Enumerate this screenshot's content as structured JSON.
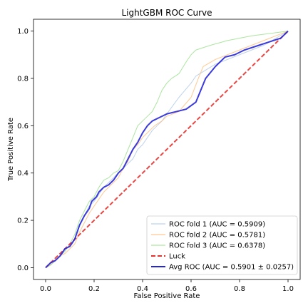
{
  "chart_data": {
    "type": "line",
    "title": "LightGBM ROC Curve",
    "xlabel": "False Positive Rate",
    "ylabel": "True Positive Rate",
    "xlim": [
      -0.05,
      1.05
    ],
    "ylim": [
      -0.05,
      1.05
    ],
    "xticks": [
      "0.0",
      "0.2",
      "0.4",
      "0.6",
      "0.8",
      "1.0"
    ],
    "yticks": [
      "0.0",
      "0.2",
      "0.4",
      "0.6",
      "0.8",
      "1.0"
    ],
    "legend_position": "lower-right",
    "grid": false,
    "series": [
      {
        "name": "ROC fold 1 (AUC = 0.5909)",
        "color": "#aec7e8",
        "style": "solid",
        "points": [
          [
            0,
            0
          ],
          [
            0.02,
            0.02
          ],
          [
            0.05,
            0.04
          ],
          [
            0.08,
            0.07
          ],
          [
            0.1,
            0.1
          ],
          [
            0.12,
            0.12
          ],
          [
            0.14,
            0.18
          ],
          [
            0.16,
            0.22
          ],
          [
            0.18,
            0.26
          ],
          [
            0.2,
            0.28
          ],
          [
            0.22,
            0.31
          ],
          [
            0.24,
            0.34
          ],
          [
            0.26,
            0.36
          ],
          [
            0.28,
            0.38
          ],
          [
            0.3,
            0.4
          ],
          [
            0.32,
            0.42
          ],
          [
            0.34,
            0.44
          ],
          [
            0.36,
            0.46
          ],
          [
            0.38,
            0.5
          ],
          [
            0.4,
            0.52
          ],
          [
            0.42,
            0.55
          ],
          [
            0.44,
            0.58
          ],
          [
            0.46,
            0.6
          ],
          [
            0.48,
            0.62
          ],
          [
            0.5,
            0.65
          ],
          [
            0.55,
            0.72
          ],
          [
            0.6,
            0.78
          ],
          [
            0.62,
            0.81
          ],
          [
            0.7,
            0.86
          ],
          [
            0.8,
            0.9
          ],
          [
            0.9,
            0.94
          ],
          [
            1,
            1
          ]
        ]
      },
      {
        "name": "ROC fold 2 (AUC = 0.5781)",
        "color": "#ffbb78",
        "style": "solid",
        "points": [
          [
            0,
            0
          ],
          [
            0.03,
            0.02
          ],
          [
            0.06,
            0.05
          ],
          [
            0.08,
            0.06
          ],
          [
            0.1,
            0.08
          ],
          [
            0.12,
            0.1
          ],
          [
            0.14,
            0.15
          ],
          [
            0.16,
            0.19
          ],
          [
            0.18,
            0.23
          ],
          [
            0.2,
            0.26
          ],
          [
            0.22,
            0.29
          ],
          [
            0.24,
            0.32
          ],
          [
            0.26,
            0.34
          ],
          [
            0.28,
            0.36
          ],
          [
            0.3,
            0.38
          ],
          [
            0.32,
            0.42
          ],
          [
            0.34,
            0.45
          ],
          [
            0.36,
            0.5
          ],
          [
            0.38,
            0.52
          ],
          [
            0.4,
            0.55
          ],
          [
            0.42,
            0.57
          ],
          [
            0.45,
            0.6
          ],
          [
            0.48,
            0.62
          ],
          [
            0.5,
            0.64
          ],
          [
            0.55,
            0.66
          ],
          [
            0.6,
            0.72
          ],
          [
            0.63,
            0.8
          ],
          [
            0.65,
            0.85
          ],
          [
            0.7,
            0.88
          ],
          [
            0.8,
            0.92
          ],
          [
            0.9,
            0.96
          ],
          [
            1,
            1
          ]
        ]
      },
      {
        "name": "ROC fold 3 (AUC = 0.6378)",
        "color": "#98df8a",
        "style": "solid",
        "points": [
          [
            0,
            0
          ],
          [
            0.02,
            0.01
          ],
          [
            0.04,
            0.03
          ],
          [
            0.06,
            0.05
          ],
          [
            0.08,
            0.07
          ],
          [
            0.1,
            0.1
          ],
          [
            0.12,
            0.14
          ],
          [
            0.14,
            0.2
          ],
          [
            0.16,
            0.24
          ],
          [
            0.18,
            0.28
          ],
          [
            0.2,
            0.3
          ],
          [
            0.22,
            0.34
          ],
          [
            0.24,
            0.37
          ],
          [
            0.26,
            0.38
          ],
          [
            0.28,
            0.4
          ],
          [
            0.3,
            0.41
          ],
          [
            0.32,
            0.45
          ],
          [
            0.34,
            0.5
          ],
          [
            0.36,
            0.55
          ],
          [
            0.38,
            0.6
          ],
          [
            0.4,
            0.62
          ],
          [
            0.42,
            0.64
          ],
          [
            0.44,
            0.66
          ],
          [
            0.46,
            0.7
          ],
          [
            0.48,
            0.75
          ],
          [
            0.5,
            0.78
          ],
          [
            0.52,
            0.8
          ],
          [
            0.55,
            0.82
          ],
          [
            0.58,
            0.87
          ],
          [
            0.6,
            0.9
          ],
          [
            0.62,
            0.92
          ],
          [
            0.68,
            0.94
          ],
          [
            0.75,
            0.96
          ],
          [
            0.85,
            0.98
          ],
          [
            1,
            1
          ]
        ]
      },
      {
        "name": "Luck",
        "color": "#e8322f",
        "style": "dashed",
        "points": [
          [
            0,
            0
          ],
          [
            1,
            1
          ]
        ]
      },
      {
        "name": "Avg ROC (AUC = 0.5901 ± 0.0257)",
        "color": "#2626d9",
        "style": "solid",
        "points": [
          [
            0,
            0
          ],
          [
            0.02,
            0.02
          ],
          [
            0.04,
            0.03
          ],
          [
            0.06,
            0.05
          ],
          [
            0.08,
            0.08
          ],
          [
            0.1,
            0.09
          ],
          [
            0.12,
            0.12
          ],
          [
            0.14,
            0.18
          ],
          [
            0.16,
            0.22
          ],
          [
            0.18,
            0.25
          ],
          [
            0.19,
            0.28
          ],
          [
            0.21,
            0.3
          ],
          [
            0.22,
            0.32
          ],
          [
            0.24,
            0.34
          ],
          [
            0.26,
            0.35
          ],
          [
            0.28,
            0.37
          ],
          [
            0.3,
            0.4
          ],
          [
            0.32,
            0.42
          ],
          [
            0.34,
            0.46
          ],
          [
            0.36,
            0.5
          ],
          [
            0.38,
            0.53
          ],
          [
            0.4,
            0.57
          ],
          [
            0.42,
            0.6
          ],
          [
            0.44,
            0.62
          ],
          [
            0.46,
            0.63
          ],
          [
            0.5,
            0.65
          ],
          [
            0.54,
            0.66
          ],
          [
            0.58,
            0.67
          ],
          [
            0.62,
            0.7
          ],
          [
            0.64,
            0.75
          ],
          [
            0.66,
            0.8
          ],
          [
            0.7,
            0.85
          ],
          [
            0.74,
            0.89
          ],
          [
            0.78,
            0.9
          ],
          [
            0.82,
            0.92
          ],
          [
            0.88,
            0.94
          ],
          [
            0.94,
            0.96
          ],
          [
            0.97,
            0.97
          ],
          [
            1,
            1
          ]
        ]
      }
    ]
  }
}
